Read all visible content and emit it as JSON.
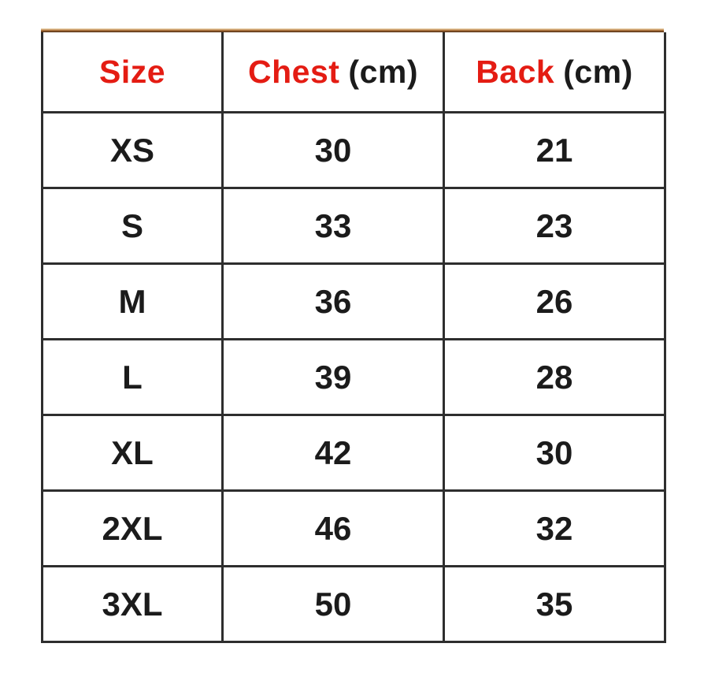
{
  "chart_data": {
    "type": "table",
    "columns": [
      {
        "label": "Size",
        "unit": ""
      },
      {
        "label": "Chest",
        "unit": "(cm)"
      },
      {
        "label": "Back",
        "unit": "(cm)"
      }
    ],
    "rows": [
      {
        "size": "XS",
        "chest": "30",
        "back": "21"
      },
      {
        "size": "S",
        "chest": "33",
        "back": "23"
      },
      {
        "size": "M",
        "chest": "36",
        "back": "26"
      },
      {
        "size": "L",
        "chest": "39",
        "back": "28"
      },
      {
        "size": "XL",
        "chest": "42",
        "back": "30"
      },
      {
        "size": "2XL",
        "chest": "46",
        "back": "32"
      },
      {
        "size": "3XL",
        "chest": "50",
        "back": "35"
      }
    ],
    "title": "",
    "layout_hints": {
      "header_label_color": "red",
      "header_unit_color": "black",
      "grid": "on",
      "text_alignment": "center"
    }
  },
  "colors": {
    "header_accent_red": "#e41c13",
    "body_text": "#1b1b1b",
    "grid_border": "#2e2e2e",
    "top_edge_tan": "#b97f46",
    "top_edge_brown": "#46230a",
    "background": "#ffffff"
  }
}
